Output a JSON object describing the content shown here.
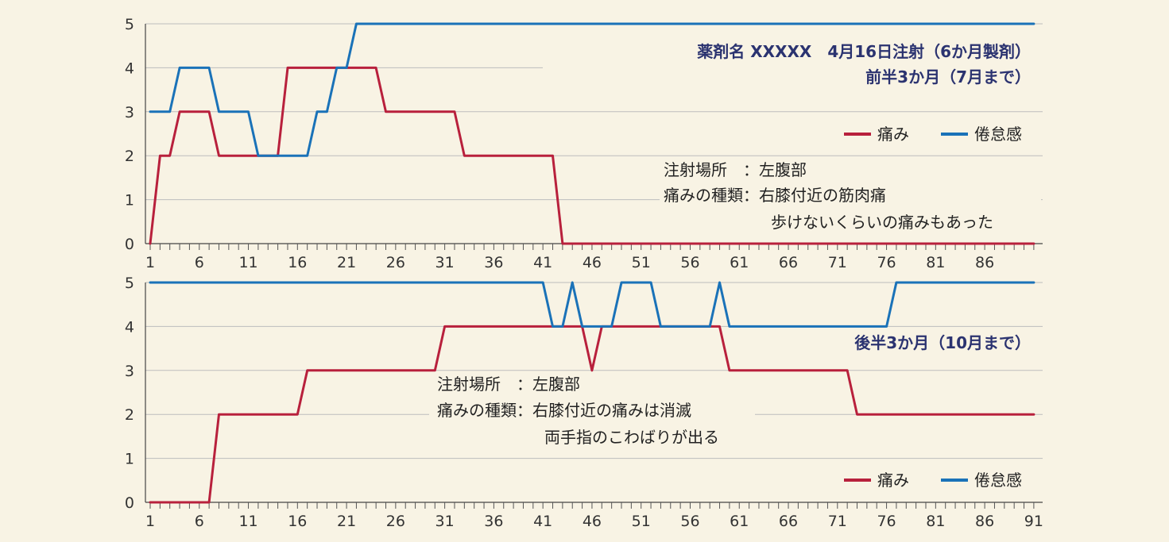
{
  "chart_data": [
    {
      "type": "line",
      "title_line1": "薬剤名 XXXXX　4月16日注射（6か月製剤）",
      "title_line2": "前半3か月（7月まで）",
      "ylim": [
        0,
        5
      ],
      "yticks": [
        0,
        1,
        2,
        3,
        4,
        5
      ],
      "xlim": [
        1,
        91
      ],
      "xticks": [
        1,
        6,
        11,
        16,
        21,
        26,
        31,
        36,
        41,
        46,
        51,
        56,
        61,
        66,
        71,
        76,
        81,
        86
      ],
      "legend": [
        "痛み",
        "倦怠感"
      ],
      "legend_position": "right",
      "notes": [
        "注射場所　：左腹部",
        "痛みの種類：右膝付近の筋肉痛",
        "歩けないくらいの痛みもあった"
      ],
      "grid": true,
      "series": [
        {
          "name": "痛み",
          "color": "#b8203c",
          "x": [
            1,
            2,
            3,
            4,
            5,
            6,
            7,
            8,
            9,
            10,
            11,
            12,
            13,
            14,
            15,
            16,
            17,
            18,
            19,
            20,
            21,
            22,
            23,
            24,
            25,
            26,
            27,
            28,
            29,
            30,
            31,
            32,
            33,
            34,
            35,
            36,
            37,
            38,
            39,
            40,
            41,
            42,
            43,
            44,
            91
          ],
          "y": [
            0,
            2,
            2,
            3,
            3,
            3,
            3,
            2,
            2,
            2,
            2,
            2,
            2,
            2,
            4,
            4,
            4,
            4,
            4,
            4,
            4,
            4,
            4,
            4,
            3,
            3,
            3,
            3,
            3,
            3,
            3,
            3,
            2,
            2,
            2,
            2,
            2,
            2,
            2,
            2,
            2,
            2,
            0,
            0,
            0
          ]
        },
        {
          "name": "倦怠感",
          "color": "#1a72b8",
          "x": [
            1,
            2,
            3,
            4,
            5,
            6,
            7,
            8,
            9,
            10,
            11,
            12,
            13,
            14,
            15,
            16,
            17,
            18,
            19,
            20,
            21,
            22,
            23,
            91
          ],
          "y": [
            3,
            3,
            3,
            4,
            4,
            4,
            4,
            3,
            3,
            3,
            3,
            2,
            2,
            2,
            2,
            2,
            2,
            3,
            3,
            4,
            4,
            5,
            5,
            5
          ]
        }
      ]
    },
    {
      "type": "line",
      "title": "後半3か月（10月まで）",
      "ylim": [
        0,
        5
      ],
      "yticks": [
        0,
        1,
        2,
        3,
        4,
        5
      ],
      "xlim": [
        1,
        91
      ],
      "xticks": [
        1,
        6,
        11,
        16,
        21,
        26,
        31,
        36,
        41,
        46,
        51,
        56,
        61,
        66,
        71,
        76,
        81,
        86,
        91
      ],
      "legend": [
        "痛み",
        "倦怠感"
      ],
      "legend_position": "bottom-right",
      "notes": [
        "注射場所　：左腹部",
        "痛みの種類：右膝付近の痛みは消滅",
        "両手指のこわばりが出る"
      ],
      "grid": true,
      "series": [
        {
          "name": "痛み",
          "color": "#b8203c",
          "x": [
            1,
            7,
            8,
            16,
            17,
            30,
            31,
            45,
            46,
            47,
            58,
            59,
            60,
            72,
            73,
            91
          ],
          "y": [
            0,
            0,
            2,
            2,
            3,
            3,
            4,
            4,
            3,
            4,
            4,
            4,
            3,
            3,
            2,
            2
          ]
        },
        {
          "name": "倦怠感",
          "color": "#1a72b8",
          "x": [
            1,
            41,
            42,
            43,
            44,
            45,
            46,
            47,
            48,
            49,
            50,
            51,
            52,
            53,
            54,
            55,
            56,
            57,
            58,
            59,
            60,
            75,
            76,
            77,
            91
          ],
          "y": [
            5,
            5,
            4,
            4,
            5,
            4,
            4,
            4,
            4,
            5,
            5,
            5,
            5,
            4,
            4,
            4,
            4,
            4,
            4,
            5,
            4,
            4,
            4,
            5,
            5
          ]
        }
      ]
    }
  ]
}
